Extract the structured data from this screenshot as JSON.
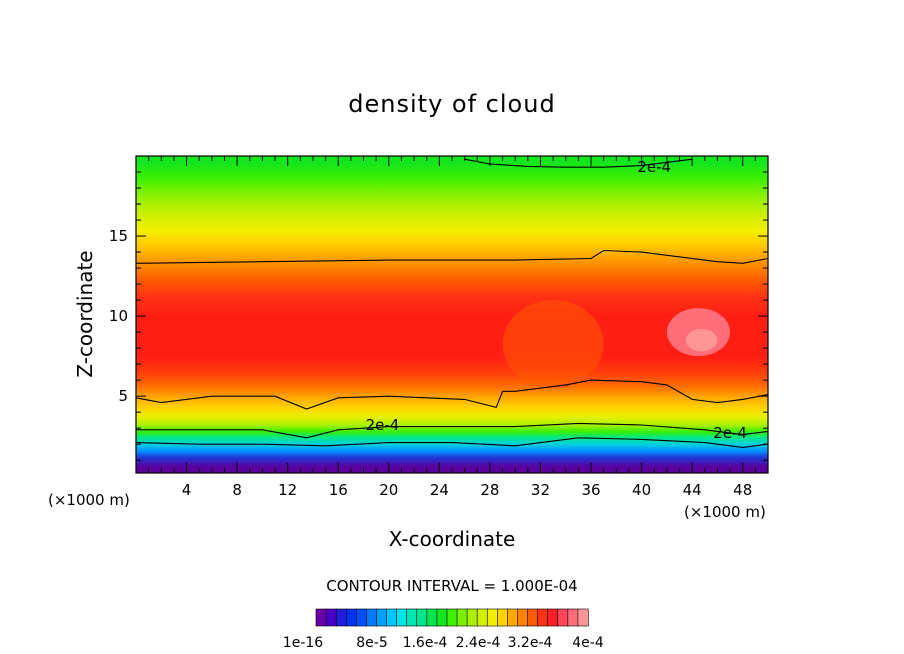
{
  "chart_data": {
    "type": "heatmap",
    "title": "density of cloud",
    "xlabel": "X-coordinate",
    "ylabel": "Z-coordinate",
    "x_unit": "(×1000 m)",
    "z_unit": "(×1000 m)",
    "xlim": [
      0,
      50
    ],
    "ylim": [
      0.2,
      20
    ],
    "x_ticks": [
      4,
      8,
      12,
      16,
      20,
      24,
      28,
      32,
      36,
      40,
      44,
      48
    ],
    "y_ticks": [
      5,
      10,
      15
    ],
    "x_tick_labels": [
      "4",
      "8",
      "12",
      "16",
      "20",
      "24",
      "28",
      "32",
      "36",
      "40",
      "44",
      "48"
    ],
    "y_tick_labels": [
      "5",
      "10",
      "15"
    ],
    "contour_interval_text": "CONTOUR INTERVAL = 1.000E-04",
    "contour_labels": [
      {
        "text": "2e-4",
        "x": 41,
        "z": 19.3
      },
      {
        "text": "2e-4",
        "x": 19.5,
        "z": 3.2
      },
      {
        "text": "2e-4",
        "x": 47,
        "z": 2.7
      }
    ],
    "contour_lines": [
      {
        "name": "upper-cap",
        "x": [
          26,
          28,
          31,
          34,
          37,
          40,
          43,
          44
        ],
        "z": [
          19.8,
          19.5,
          19.35,
          19.3,
          19.3,
          19.4,
          19.7,
          19.8
        ]
      },
      {
        "name": "z13",
        "x": [
          0,
          10,
          20,
          30,
          36,
          37,
          40,
          46,
          48,
          50
        ],
        "z": [
          13.3,
          13.4,
          13.5,
          13.5,
          13.6,
          14.1,
          14.0,
          13.4,
          13.3,
          13.6
        ]
      },
      {
        "name": "z5",
        "x": [
          0,
          2,
          6,
          11,
          13.5,
          16,
          20,
          26,
          28.5,
          29,
          30,
          34,
          36,
          40,
          42,
          44,
          46,
          48,
          50
        ],
        "z": [
          4.9,
          4.6,
          5.0,
          5.0,
          4.2,
          4.9,
          5.0,
          4.8,
          4.3,
          5.3,
          5.3,
          5.7,
          6.0,
          5.9,
          5.7,
          4.8,
          4.6,
          4.8,
          5.1
        ]
      },
      {
        "name": "z3",
        "x": [
          0,
          5,
          10,
          13.5,
          16,
          20,
          25,
          30,
          35,
          40,
          45,
          48,
          50
        ],
        "z": [
          2.9,
          2.9,
          2.9,
          2.4,
          2.9,
          3.1,
          3.1,
          3.1,
          3.3,
          3.2,
          2.9,
          2.6,
          2.8
        ]
      },
      {
        "name": "z2",
        "x": [
          0,
          5,
          10,
          15,
          20,
          25,
          30,
          35,
          40,
          45,
          48,
          50
        ],
        "z": [
          2.1,
          2.0,
          2.0,
          1.9,
          2.1,
          2.1,
          1.9,
          2.4,
          2.3,
          2.1,
          1.8,
          2.0
        ]
      }
    ],
    "colorbar": {
      "colors": [
        "#6a00a8",
        "#4b00c8",
        "#1e1edc",
        "#0032f0",
        "#0050ff",
        "#0078ff",
        "#00a0ff",
        "#00c8ff",
        "#00e6e6",
        "#00e6b4",
        "#00e68c",
        "#00e650",
        "#14e61e",
        "#3cf000",
        "#78f000",
        "#aaf000",
        "#d2f000",
        "#f0f000",
        "#ffd200",
        "#ffaa00",
        "#ff8200",
        "#ff5a00",
        "#ff3214",
        "#ff1e28",
        "#ff465a",
        "#ff6e78",
        "#ff9696"
      ],
      "tick_labels": [
        "1e-16",
        "8e-5",
        "1.6e-4",
        "2.4e-4",
        "3.2e-4",
        "4e-4"
      ]
    },
    "field_description_by_height": [
      {
        "z": 0.6,
        "color": "#5a009c"
      },
      {
        "z": 1.2,
        "color": "#1e3cdc"
      },
      {
        "z": 1.6,
        "color": "#0096ff"
      },
      {
        "z": 2.0,
        "color": "#00d2dc"
      },
      {
        "z": 2.4,
        "color": "#00e68c"
      },
      {
        "z": 2.8,
        "color": "#3cf000"
      },
      {
        "z": 3.2,
        "color": "#aaf000"
      },
      {
        "z": 3.7,
        "color": "#e6f000"
      },
      {
        "z": 4.3,
        "color": "#ffd200"
      },
      {
        "z": 4.9,
        "color": "#ffaa00"
      },
      {
        "z": 5.6,
        "color": "#ff6e00"
      },
      {
        "z": 6.5,
        "color": "#ff3c0a"
      },
      {
        "z": 7.5,
        "color": "#ff1e14"
      },
      {
        "z": 10.0,
        "color": "#ff1e14"
      },
      {
        "z": 11.2,
        "color": "#ff3214"
      },
      {
        "z": 12.2,
        "color": "#ff5a00"
      },
      {
        "z": 13.0,
        "color": "#ff8200"
      },
      {
        "z": 13.8,
        "color": "#ffaa00"
      },
      {
        "z": 14.6,
        "color": "#ffd200"
      },
      {
        "z": 15.4,
        "color": "#f0f000"
      },
      {
        "z": 16.2,
        "color": "#d2f000"
      },
      {
        "z": 17.0,
        "color": "#aaf000"
      },
      {
        "z": 17.8,
        "color": "#78f000"
      },
      {
        "z": 18.6,
        "color": "#3cf000"
      },
      {
        "z": 19.6,
        "color": "#14e61e"
      }
    ],
    "high_value_patches": [
      {
        "x": [
          42,
          47
        ],
        "z": [
          7.5,
          10.5
        ],
        "color": "#ff6e78"
      },
      {
        "x": [
          43.5,
          46
        ],
        "z": [
          7.8,
          9.2
        ],
        "color": "#ff9696"
      },
      {
        "x": [
          29,
          37
        ],
        "z": [
          5.5,
          11
        ],
        "color": "#ff5a00"
      }
    ]
  }
}
